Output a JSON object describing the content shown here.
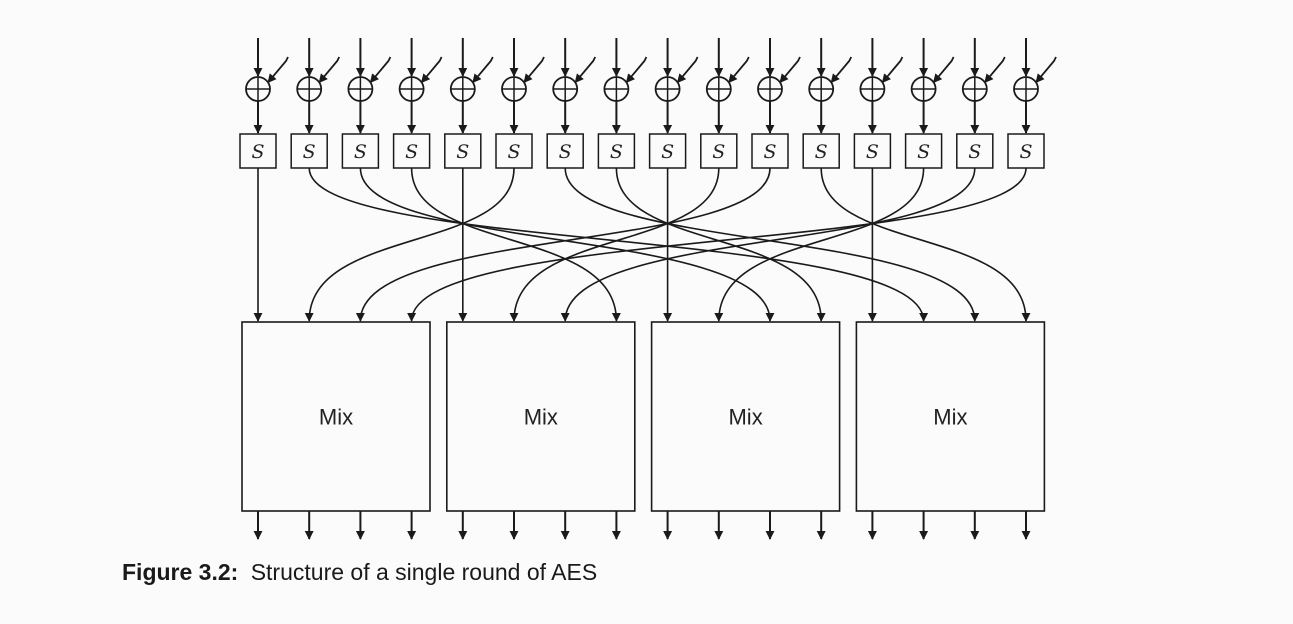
{
  "sbox_label": "S",
  "mix_label": "Mix",
  "caption": {
    "label": "Figure 3.2:",
    "text": "Structure of a single round of AES"
  },
  "structure": {
    "bytes": 16,
    "mix_blocks": 4,
    "wiring_by_mix_block": [
      [
        0,
        5,
        10,
        15
      ],
      [
        4,
        9,
        14,
        3
      ],
      [
        8,
        13,
        2,
        7
      ],
      [
        12,
        1,
        6,
        11
      ]
    ]
  }
}
